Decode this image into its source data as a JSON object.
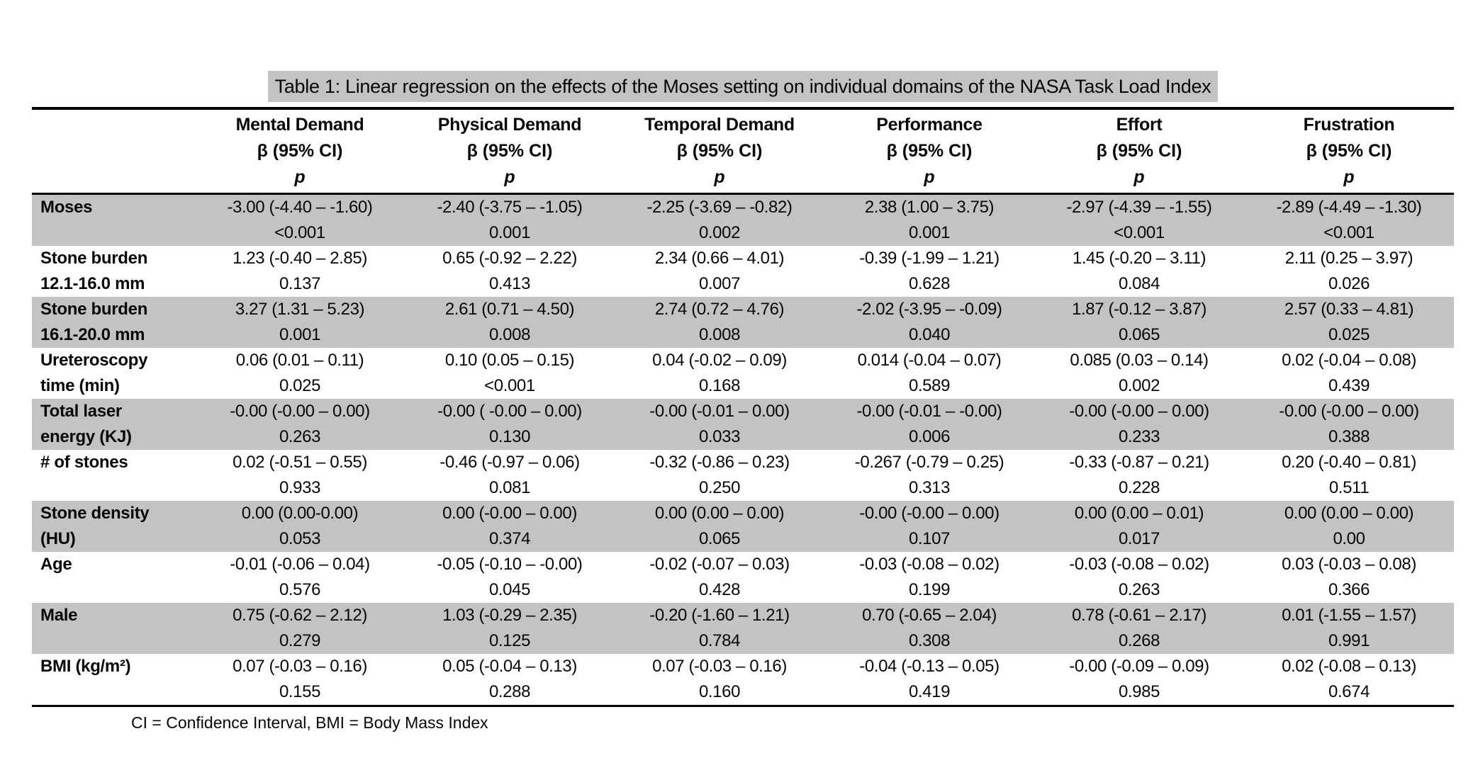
{
  "title": "Table 1: Linear regression on the effects of the Moses setting on individual domains of the NASA Task Load Index",
  "footnote": "CI = Confidence Interval, BMI = Body Mass Index",
  "colors": {
    "row_shade": "#c3c3c3",
    "title_highlight": "#c3c3c3",
    "rule": "#000000"
  },
  "columns": [
    {
      "name": "Mental Demand",
      "sub": "β (95% CI)",
      "p": "p"
    },
    {
      "name": "Physical Demand",
      "sub": "β (95% CI)",
      "p": "p"
    },
    {
      "name": "Temporal Demand",
      "sub": "β (95% CI)",
      "p": "p"
    },
    {
      "name": "Performance",
      "sub": "β (95% CI)",
      "p": "p"
    },
    {
      "name": "Effort",
      "sub": "β (95% CI)",
      "p": "p"
    },
    {
      "name": "Frustration",
      "sub": "β (95% CI)",
      "p": "p"
    }
  ],
  "rows": [
    {
      "label1": "Moses",
      "label2": "",
      "shaded": true,
      "cells": [
        {
          "beta": "-3.00 (-4.40 – -1.60)",
          "p": "<0.001"
        },
        {
          "beta": "-2.40 (-3.75 – -1.05)",
          "p": "0.001"
        },
        {
          "beta": "-2.25 (-3.69 – -0.82)",
          "p": "0.002"
        },
        {
          "beta": "2.38 (1.00 – 3.75)",
          "p": "0.001"
        },
        {
          "beta": "-2.97 (-4.39 – -1.55)",
          "p": "<0.001"
        },
        {
          "beta": "-2.89 (-4.49 – -1.30)",
          "p": "<0.001"
        }
      ]
    },
    {
      "label1": "Stone burden",
      "label2": "12.1-16.0 mm",
      "shaded": false,
      "cells": [
        {
          "beta": "1.23 (-0.40 – 2.85)",
          "p": "0.137"
        },
        {
          "beta": "0.65 (-0.92 – 2.22)",
          "p": "0.413"
        },
        {
          "beta": "2.34 (0.66 – 4.01)",
          "p": "0.007"
        },
        {
          "beta": "-0.39 (-1.99 – 1.21)",
          "p": "0.628"
        },
        {
          "beta": "1.45 (-0.20 – 3.11)",
          "p": "0.084"
        },
        {
          "beta": "2.11 (0.25 – 3.97)",
          "p": "0.026"
        }
      ]
    },
    {
      "label1": "Stone burden",
      "label2": "16.1-20.0 mm",
      "shaded": true,
      "cells": [
        {
          "beta": "3.27 (1.31 – 5.23)",
          "p": "0.001"
        },
        {
          "beta": "2.61 (0.71 – 4.50)",
          "p": "0.008"
        },
        {
          "beta": "2.74 (0.72 – 4.76)",
          "p": "0.008"
        },
        {
          "beta": "-2.02 (-3.95 – -0.09)",
          "p": "0.040"
        },
        {
          "beta": "1.87 (-0.12 – 3.87)",
          "p": "0.065"
        },
        {
          "beta": "2.57 (0.33 – 4.81)",
          "p": "0.025"
        }
      ]
    },
    {
      "label1": "Ureteroscopy",
      "label2": "time (min)",
      "shaded": false,
      "cells": [
        {
          "beta": "0.06 (0.01 – 0.11)",
          "p": "0.025"
        },
        {
          "beta": "0.10 (0.05 – 0.15)",
          "p": "<0.001"
        },
        {
          "beta": "0.04 (-0.02 – 0.09)",
          "p": "0.168"
        },
        {
          "beta": "0.014 (-0.04 – 0.07)",
          "p": "0.589"
        },
        {
          "beta": "0.085 (0.03 – 0.14)",
          "p": "0.002"
        },
        {
          "beta": "0.02 (-0.04 – 0.08)",
          "p": "0.439"
        }
      ]
    },
    {
      "label1": "Total laser",
      "label2": "energy (KJ)",
      "shaded": true,
      "cells": [
        {
          "beta": "-0.00 (-0.00 – 0.00)",
          "p": "0.263"
        },
        {
          "beta": "-0.00 ( -0.00 – 0.00)",
          "p": "0.130"
        },
        {
          "beta": "-0.00 (-0.01 – 0.00)",
          "p": "0.033"
        },
        {
          "beta": "-0.00 (-0.01 – -0.00)",
          "p": "0.006"
        },
        {
          "beta": "-0.00 (-0.00 – 0.00)",
          "p": "0.233"
        },
        {
          "beta": "-0.00 (-0.00 – 0.00)",
          "p": "0.388"
        }
      ]
    },
    {
      "label1": "# of stones",
      "label2": "",
      "shaded": false,
      "cells": [
        {
          "beta": "0.02 (-0.51 – 0.55)",
          "p": "0.933"
        },
        {
          "beta": "-0.46 (-0.97 – 0.06)",
          "p": "0.081"
        },
        {
          "beta": "-0.32 (-0.86 – 0.23)",
          "p": "0.250"
        },
        {
          "beta": "-0.267 (-0.79 – 0.25)",
          "p": "0.313"
        },
        {
          "beta": "-0.33 (-0.87 – 0.21)",
          "p": "0.228"
        },
        {
          "beta": "0.20 (-0.40 – 0.81)",
          "p": "0.511"
        }
      ]
    },
    {
      "label1": "Stone density",
      "label2": "(HU)",
      "shaded": true,
      "cells": [
        {
          "beta": "0.00 (0.00-0.00)",
          "p": "0.053"
        },
        {
          "beta": "0.00 (-0.00 – 0.00)",
          "p": "0.374"
        },
        {
          "beta": "0.00 (0.00 – 0.00)",
          "p": "0.065"
        },
        {
          "beta": "-0.00 (-0.00 – 0.00)",
          "p": "0.107"
        },
        {
          "beta": "0.00 (0.00 – 0.01)",
          "p": "0.017"
        },
        {
          "beta": "0.00 (0.00 – 0.00)",
          "p": "0.00"
        }
      ]
    },
    {
      "label1": "Age",
      "label2": "",
      "shaded": false,
      "cells": [
        {
          "beta": "-0.01 (-0.06 – 0.04)",
          "p": "0.576"
        },
        {
          "beta": "-0.05 (-0.10 – -0.00)",
          "p": "0.045"
        },
        {
          "beta": "-0.02 (-0.07 – 0.03)",
          "p": "0.428"
        },
        {
          "beta": "-0.03 (-0.08 – 0.02)",
          "p": "0.199"
        },
        {
          "beta": "-0.03 (-0.08 – 0.02)",
          "p": "0.263"
        },
        {
          "beta": "0.03 (-0.03 – 0.08)",
          "p": "0.366"
        }
      ]
    },
    {
      "label1": "Male",
      "label2": "",
      "shaded": true,
      "cells": [
        {
          "beta": "0.75 (-0.62 – 2.12)",
          "p": "0.279"
        },
        {
          "beta": "1.03 (-0.29 – 2.35)",
          "p": "0.125"
        },
        {
          "beta": "-0.20 (-1.60 – 1.21)",
          "p": "0.784"
        },
        {
          "beta": "0.70 (-0.65 – 2.04)",
          "p": "0.308"
        },
        {
          "beta": "0.78 (-0.61 – 2.17)",
          "p": "0.268"
        },
        {
          "beta": "0.01 (-1.55 – 1.57)",
          "p": "0.991"
        }
      ]
    },
    {
      "label1": "BMI (kg/m²)",
      "label2": "",
      "shaded": false,
      "cells": [
        {
          "beta": "0.07 (-0.03 – 0.16)",
          "p": "0.155"
        },
        {
          "beta": "0.05 (-0.04 – 0.13)",
          "p": "0.288"
        },
        {
          "beta": "0.07 (-0.03 – 0.16)",
          "p": "0.160"
        },
        {
          "beta": "-0.04 (-0.13 – 0.05)",
          "p": "0.419"
        },
        {
          "beta": "-0.00 (-0.09 – 0.09)",
          "p": "0.985"
        },
        {
          "beta": "0.02 (-0.08 – 0.13)",
          "p": "0.674"
        }
      ]
    }
  ]
}
